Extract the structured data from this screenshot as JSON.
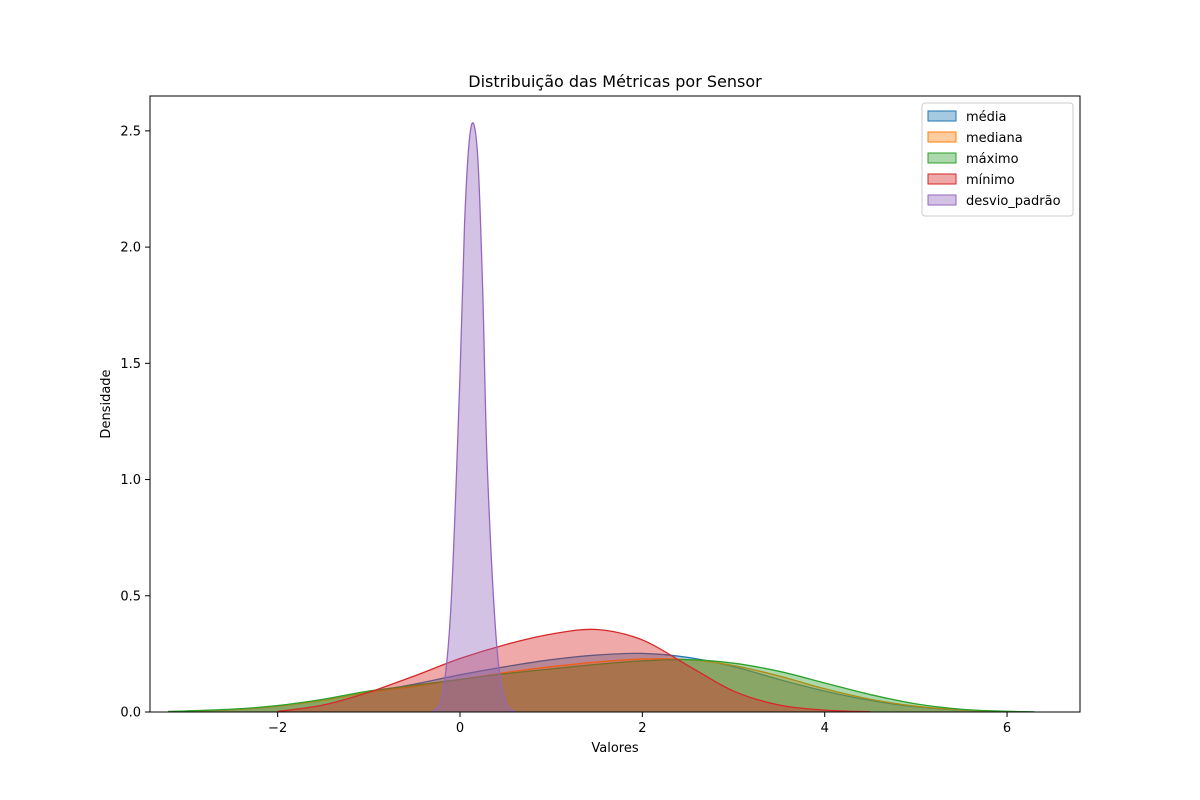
{
  "chart_data": {
    "type": "area",
    "title": "Distribuição das Métricas por Sensor",
    "xlabel": "Valores",
    "ylabel": "Densidade",
    "xlim": [
      -3.4,
      6.8
    ],
    "ylim": [
      0,
      2.65
    ],
    "xticks": [
      -2,
      0,
      2,
      4,
      6
    ],
    "xtick_labels": [
      "−2",
      "0",
      "2",
      "4",
      "6"
    ],
    "yticks": [
      0.0,
      0.5,
      1.0,
      1.5,
      2.0,
      2.5
    ],
    "ytick_labels": [
      "0.0",
      "0.5",
      "1.0",
      "1.5",
      "2.0",
      "2.5"
    ],
    "grid": false,
    "legend_position": "top-right",
    "series": [
      {
        "name": "média",
        "color": "#1f77b4",
        "x": [
          -3.2,
          -2.5,
          -2.0,
          -1.5,
          -1.0,
          -0.5,
          0.0,
          0.5,
          1.0,
          1.5,
          2.0,
          2.5,
          3.0,
          3.5,
          4.0,
          4.5,
          5.0,
          5.5,
          6.0
        ],
        "y": [
          0.002,
          0.01,
          0.025,
          0.05,
          0.085,
          0.12,
          0.16,
          0.195,
          0.225,
          0.245,
          0.252,
          0.235,
          0.195,
          0.14,
          0.09,
          0.05,
          0.022,
          0.008,
          0.002
        ]
      },
      {
        "name": "mediana",
        "color": "#ff7f0e",
        "x": [
          -3.2,
          -2.5,
          -2.0,
          -1.5,
          -1.0,
          -0.5,
          0.0,
          0.5,
          1.0,
          1.5,
          2.0,
          2.5,
          3.0,
          3.5,
          4.0,
          4.5,
          5.0,
          5.5,
          6.0
        ],
        "y": [
          0.002,
          0.01,
          0.025,
          0.05,
          0.085,
          0.11,
          0.14,
          0.17,
          0.195,
          0.215,
          0.228,
          0.225,
          0.2,
          0.155,
          0.1,
          0.055,
          0.025,
          0.009,
          0.002
        ]
      },
      {
        "name": "máximo",
        "color": "#2ca02c",
        "x": [
          -3.2,
          -2.5,
          -2.0,
          -1.5,
          -1.0,
          -0.5,
          0.0,
          0.5,
          1.0,
          1.5,
          2.0,
          2.5,
          3.0,
          3.5,
          4.0,
          4.5,
          5.0,
          5.5,
          6.0,
          6.3
        ],
        "y": [
          0.002,
          0.012,
          0.028,
          0.055,
          0.09,
          0.115,
          0.14,
          0.165,
          0.185,
          0.205,
          0.22,
          0.225,
          0.21,
          0.175,
          0.125,
          0.075,
          0.035,
          0.012,
          0.003,
          0.001
        ]
      },
      {
        "name": "mínimo",
        "color": "#d62728",
        "x": [
          -2.0,
          -1.5,
          -1.0,
          -0.5,
          0.0,
          0.5,
          1.0,
          1.5,
          2.0,
          2.5,
          3.0,
          3.5,
          4.0,
          4.5
        ],
        "y": [
          0.002,
          0.03,
          0.085,
          0.155,
          0.23,
          0.29,
          0.335,
          0.355,
          0.31,
          0.2,
          0.09,
          0.03,
          0.008,
          0.001
        ]
      },
      {
        "name": "desvio_padrão",
        "color": "#9467bd",
        "x": [
          -0.3,
          -0.2,
          -0.1,
          0.0,
          0.05,
          0.1,
          0.15,
          0.2,
          0.25,
          0.3,
          0.4,
          0.5,
          0.6
        ],
        "y": [
          0.002,
          0.06,
          0.45,
          1.45,
          2.1,
          2.45,
          2.53,
          2.35,
          1.8,
          1.05,
          0.3,
          0.04,
          0.002
        ]
      }
    ]
  }
}
